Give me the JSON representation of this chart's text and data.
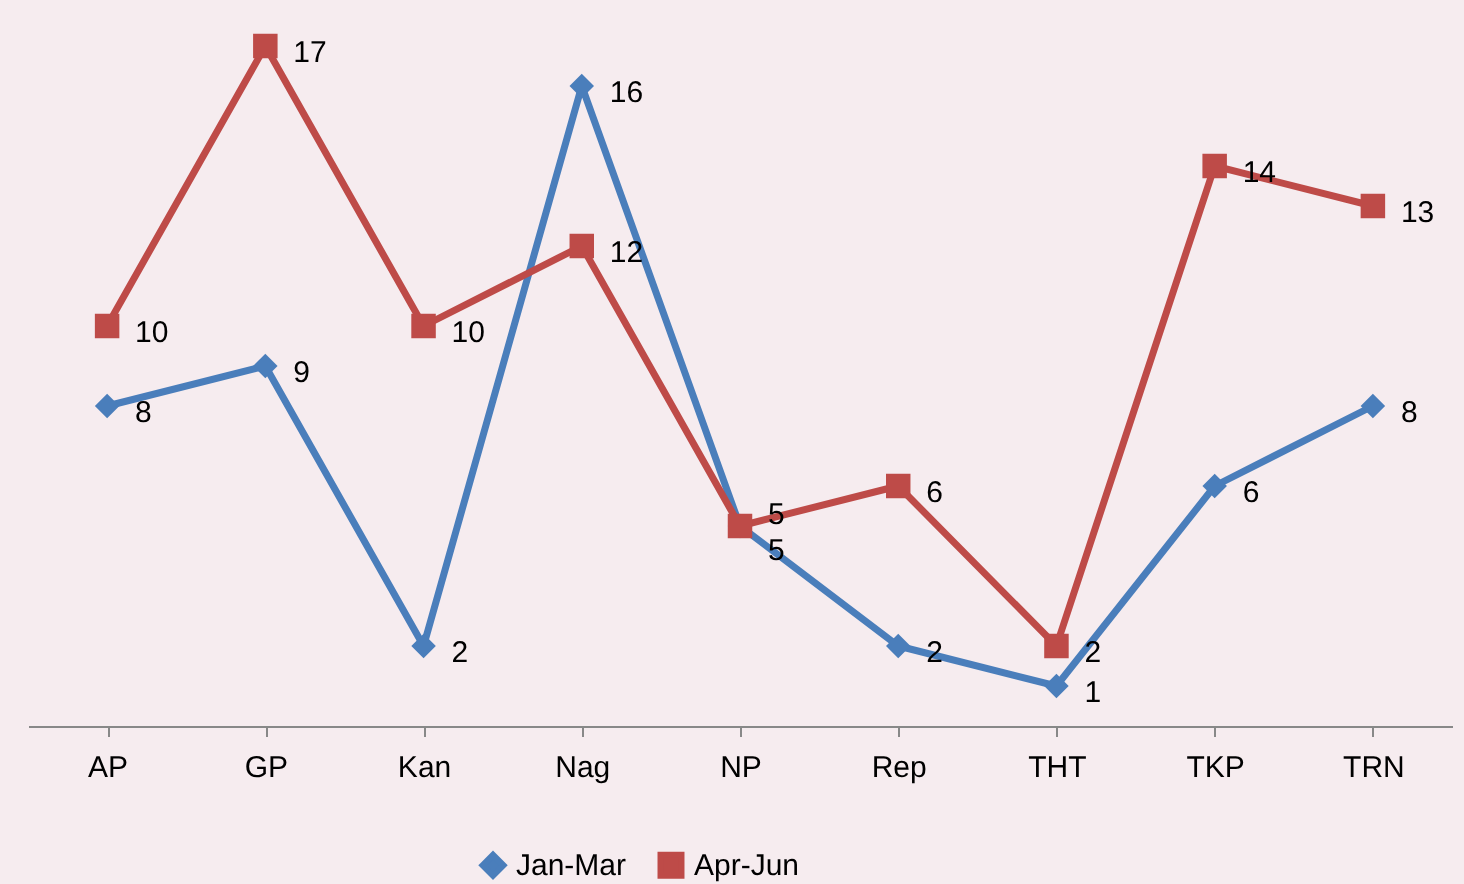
{
  "chart_data": {
    "type": "line",
    "categories": [
      "AP",
      "GP",
      "Kan",
      "Nag",
      "NP",
      "Rep",
      "THT",
      "TKP",
      "TRN"
    ],
    "series": [
      {
        "name": "Jan-Mar",
        "color": "#4a7ebb",
        "marker": "diamond",
        "values": [
          8,
          9,
          2,
          16,
          5,
          2,
          1,
          6,
          8
        ]
      },
      {
        "name": "Apr-Jun",
        "color": "#be4b48",
        "marker": "square",
        "values": [
          10,
          17,
          10,
          12,
          5,
          6,
          2,
          14,
          13
        ]
      }
    ],
    "data_labels": true,
    "legend": "bottom",
    "grid": false
  }
}
